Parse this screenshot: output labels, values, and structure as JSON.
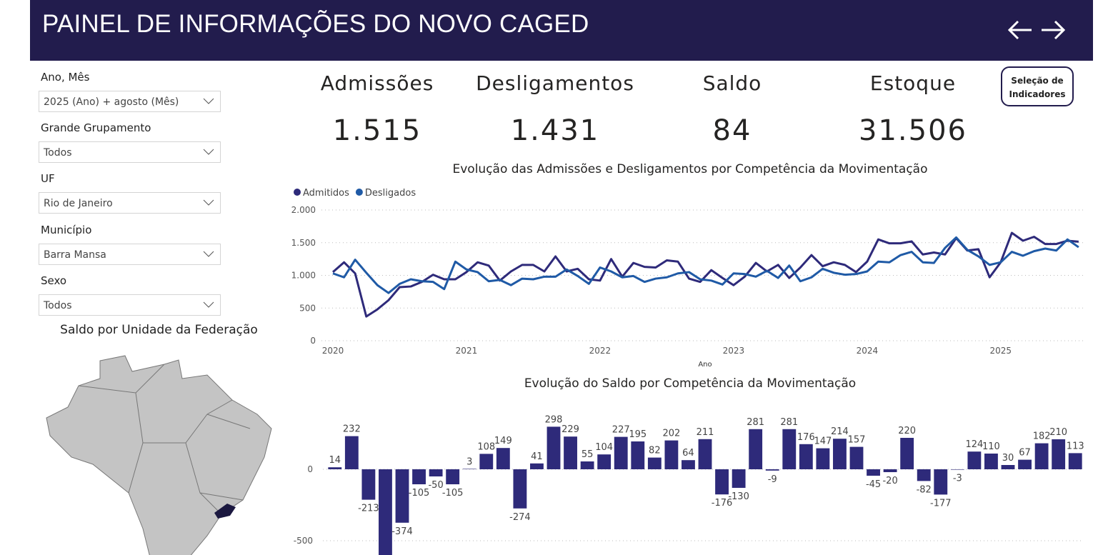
{
  "header": {
    "title": "PAINEL DE INFORMAÇÕES DO NOVO CAGED"
  },
  "filters": [
    {
      "label": "Ano, Mês",
      "value": "2025 (Ano) + agosto (Mês)"
    },
    {
      "label": "Grande Grupamento",
      "value": "Todos"
    },
    {
      "label": "UF",
      "value": "Rio de Janeiro"
    },
    {
      "label": "Município",
      "value": "Barra Mansa"
    },
    {
      "label": "Sexo",
      "value": "Todos"
    }
  ],
  "kpis": [
    {
      "label": "Admissões",
      "value": "1.515"
    },
    {
      "label": "Desligamentos",
      "value": "1.431"
    },
    {
      "label": "Saldo",
      "value": "84"
    },
    {
      "label": "Estoque",
      "value": "31.506"
    }
  ],
  "indicator_button": "Seleção de Indicadores",
  "map": {
    "title": "Saldo por Unidade da Federação"
  },
  "chart_data": [
    {
      "type": "line",
      "title": "Evolução das Admissões e Desligamentos por Competência da Movimentação",
      "x_label": "Ano",
      "legend": "top-left",
      "grid": true,
      "categories": [
        "2020",
        null,
        null,
        null,
        null,
        null,
        null,
        null,
        null,
        null,
        null,
        null,
        "2021",
        null,
        null,
        null,
        null,
        null,
        null,
        null,
        null,
        null,
        null,
        null,
        "2022",
        null,
        null,
        null,
        null,
        null,
        null,
        null,
        null,
        null,
        null,
        null,
        "2023",
        null,
        null,
        null,
        null,
        null,
        null,
        null,
        null,
        null,
        null,
        null,
        "2024",
        null,
        null,
        null,
        null,
        null,
        null,
        null,
        null,
        null,
        null,
        null,
        "2025",
        null,
        null,
        null,
        null,
        null,
        null,
        null
      ],
      "series": [
        {
          "name": "Admitidos",
          "color": "#2e2a7a",
          "values": [
            1050,
            1200,
            1030,
            370,
            480,
            620,
            820,
            830,
            900,
            1010,
            940,
            940,
            1050,
            1200,
            1150,
            920,
            1060,
            1160,
            1160,
            1060,
            1290,
            1060,
            1100,
            940,
            920,
            1250,
            980,
            1190,
            1130,
            1120,
            1230,
            1210,
            950,
            900,
            1080,
            960,
            850,
            980,
            1190,
            1060,
            1160,
            960,
            1120,
            1310,
            1140,
            1200,
            1160,
            1050,
            1210,
            1550,
            1490,
            1490,
            1520,
            1320,
            1350,
            1320,
            1570,
            1380,
            1400,
            970,
            1200,
            1650,
            1530,
            1590,
            1480,
            1480,
            1530,
            1515
          ]
        },
        {
          "name": "Desligados",
          "color": "#1f5aa6",
          "values": [
            1030,
            970,
            1240,
            1040,
            850,
            730,
            870,
            940,
            910,
            900,
            790,
            1210,
            1090,
            1050,
            910,
            930,
            850,
            950,
            940,
            980,
            980,
            1090,
            990,
            870,
            1120,
            1060,
            970,
            990,
            900,
            950,
            970,
            1030,
            1050,
            940,
            920,
            860,
            1030,
            1020,
            980,
            1070,
            960,
            1150,
            910,
            970,
            1100,
            1040,
            1010,
            1020,
            1060,
            1210,
            1200,
            1310,
            1360,
            1200,
            1190,
            1420,
            1580,
            1390,
            1290,
            1160,
            1200,
            1360,
            1300,
            1370,
            1410,
            1380,
            1550,
            1431
          ]
        }
      ],
      "ylim": [
        0,
        2000
      ],
      "yticks": [
        0,
        500,
        {
          "value": 1000,
          "label": "1.000"
        },
        {
          "value": 1500,
          "label": "1.500"
        },
        {
          "value": 2000,
          "label": "2.000"
        }
      ]
    },
    {
      "type": "bar",
      "title": "Evolução do Saldo por Competência da Movimentação",
      "color": "#2e2a7a",
      "grid": true,
      "values": [
        14,
        232,
        -213,
        -610,
        -374,
        -105,
        -50,
        -105,
        3,
        108,
        149,
        -274,
        41,
        298,
        229,
        55,
        104,
        227,
        195,
        82,
        202,
        64,
        211,
        -176,
        -130,
        281,
        -9,
        281,
        176,
        147,
        214,
        157,
        -45,
        -20,
        220,
        -82,
        -177,
        -3,
        124,
        110,
        30,
        67,
        182,
        210,
        113
      ],
      "ylim": [
        -600,
        500
      ],
      "yticks": [
        -500,
        0
      ]
    }
  ]
}
